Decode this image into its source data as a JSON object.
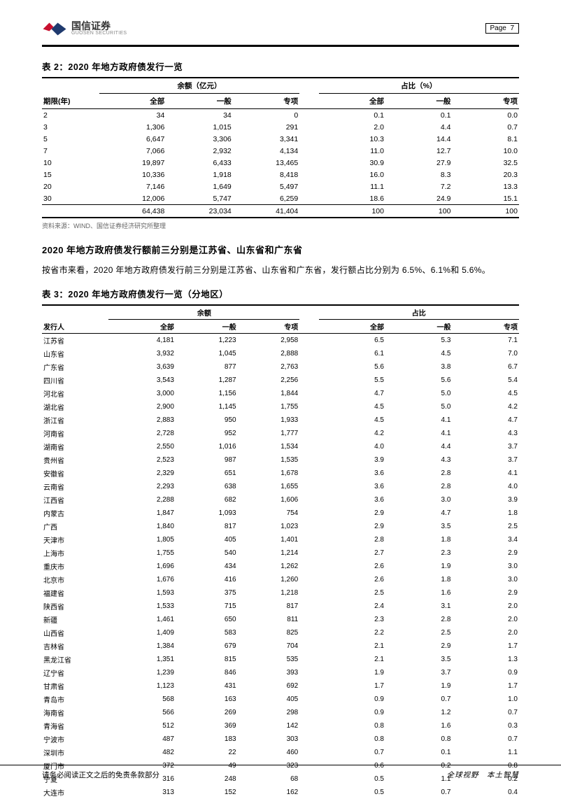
{
  "header": {
    "company_cn": "国信证券",
    "company_en": "GUOSEN SECURITIES",
    "page_label": "Page",
    "page_num": "7",
    "logo_colors": {
      "red": "#c8102e",
      "blue": "#1f3a6e"
    }
  },
  "table2": {
    "title": "表 2：2020 年地方政府债发行一览",
    "group_headers": {
      "amount": "余额（亿元）",
      "ratio": "占比（%）"
    },
    "col_headers": {
      "term": "期限(年)",
      "all": "全部",
      "general": "一般",
      "special": "专项"
    },
    "rows": [
      {
        "term": "2",
        "a_all": "34",
        "a_gen": "34",
        "a_spc": "0",
        "r_all": "0.1",
        "r_gen": "0.1",
        "r_spc": "0.0"
      },
      {
        "term": "3",
        "a_all": "1,306",
        "a_gen": "1,015",
        "a_spc": "291",
        "r_all": "2.0",
        "r_gen": "4.4",
        "r_spc": "0.7"
      },
      {
        "term": "5",
        "a_all": "6,647",
        "a_gen": "3,306",
        "a_spc": "3,341",
        "r_all": "10.3",
        "r_gen": "14.4",
        "r_spc": "8.1"
      },
      {
        "term": "7",
        "a_all": "7,066",
        "a_gen": "2,932",
        "a_spc": "4,134",
        "r_all": "11.0",
        "r_gen": "12.7",
        "r_spc": "10.0"
      },
      {
        "term": "10",
        "a_all": "19,897",
        "a_gen": "6,433",
        "a_spc": "13,465",
        "r_all": "30.9",
        "r_gen": "27.9",
        "r_spc": "32.5"
      },
      {
        "term": "15",
        "a_all": "10,336",
        "a_gen": "1,918",
        "a_spc": "8,418",
        "r_all": "16.0",
        "r_gen": "8.3",
        "r_spc": "20.3"
      },
      {
        "term": "20",
        "a_all": "7,146",
        "a_gen": "1,649",
        "a_spc": "5,497",
        "r_all": "11.1",
        "r_gen": "7.2",
        "r_spc": "13.3"
      },
      {
        "term": "30",
        "a_all": "12,006",
        "a_gen": "5,747",
        "a_spc": "6,259",
        "r_all": "18.6",
        "r_gen": "24.9",
        "r_spc": "15.1"
      }
    ],
    "sum": {
      "term": "",
      "a_all": "64,438",
      "a_gen": "23,034",
      "a_spc": "41,404",
      "r_all": "100",
      "r_gen": "100",
      "r_spc": "100"
    },
    "source": "资料来源：WIND、国信证券经济研究所整理"
  },
  "section": {
    "heading": "2020 年地方政府债发行额前三分别是江苏省、山东省和广东省",
    "paragraph": "按省市来看，2020 年地方政府债发行前三分别是江苏省、山东省和广东省，发行额占比分别为 6.5%、6.1%和 5.6%。"
  },
  "table3": {
    "title": "表 3：2020 年地方政府债发行一览（分地区）",
    "group_headers": {
      "amount": "余额",
      "ratio": "占比"
    },
    "col_headers": {
      "issuer": "发行人",
      "all": "全部",
      "general": "一般",
      "special": "专项"
    },
    "rows": [
      {
        "n": "江苏省",
        "a": "4,181",
        "g": "1,223",
        "s": "2,958",
        "ra": "6.5",
        "rg": "5.3",
        "rs": "7.1"
      },
      {
        "n": "山东省",
        "a": "3,932",
        "g": "1,045",
        "s": "2,888",
        "ra": "6.1",
        "rg": "4.5",
        "rs": "7.0"
      },
      {
        "n": "广东省",
        "a": "3,639",
        "g": "877",
        "s": "2,763",
        "ra": "5.6",
        "rg": "3.8",
        "rs": "6.7"
      },
      {
        "n": "四川省",
        "a": "3,543",
        "g": "1,287",
        "s": "2,256",
        "ra": "5.5",
        "rg": "5.6",
        "rs": "5.4"
      },
      {
        "n": "河北省",
        "a": "3,000",
        "g": "1,156",
        "s": "1,844",
        "ra": "4.7",
        "rg": "5.0",
        "rs": "4.5"
      },
      {
        "n": "湖北省",
        "a": "2,900",
        "g": "1,145",
        "s": "1,755",
        "ra": "4.5",
        "rg": "5.0",
        "rs": "4.2"
      },
      {
        "n": "浙江省",
        "a": "2,883",
        "g": "950",
        "s": "1,933",
        "ra": "4.5",
        "rg": "4.1",
        "rs": "4.7"
      },
      {
        "n": "河南省",
        "a": "2,728",
        "g": "952",
        "s": "1,777",
        "ra": "4.2",
        "rg": "4.1",
        "rs": "4.3"
      },
      {
        "n": "湖南省",
        "a": "2,550",
        "g": "1,016",
        "s": "1,534",
        "ra": "4.0",
        "rg": "4.4",
        "rs": "3.7"
      },
      {
        "n": "贵州省",
        "a": "2,523",
        "g": "987",
        "s": "1,535",
        "ra": "3.9",
        "rg": "4.3",
        "rs": "3.7"
      },
      {
        "n": "安徽省",
        "a": "2,329",
        "g": "651",
        "s": "1,678",
        "ra": "3.6",
        "rg": "2.8",
        "rs": "4.1"
      },
      {
        "n": "云南省",
        "a": "2,293",
        "g": "638",
        "s": "1,655",
        "ra": "3.6",
        "rg": "2.8",
        "rs": "4.0"
      },
      {
        "n": "江西省",
        "a": "2,288",
        "g": "682",
        "s": "1,606",
        "ra": "3.6",
        "rg": "3.0",
        "rs": "3.9"
      },
      {
        "n": "内蒙古",
        "a": "1,847",
        "g": "1,093",
        "s": "754",
        "ra": "2.9",
        "rg": "4.7",
        "rs": "1.8"
      },
      {
        "n": "广西",
        "a": "1,840",
        "g": "817",
        "s": "1,023",
        "ra": "2.9",
        "rg": "3.5",
        "rs": "2.5"
      },
      {
        "n": "天津市",
        "a": "1,805",
        "g": "405",
        "s": "1,401",
        "ra": "2.8",
        "rg": "1.8",
        "rs": "3.4"
      },
      {
        "n": "上海市",
        "a": "1,755",
        "g": "540",
        "s": "1,214",
        "ra": "2.7",
        "rg": "2.3",
        "rs": "2.9"
      },
      {
        "n": "重庆市",
        "a": "1,696",
        "g": "434",
        "s": "1,262",
        "ra": "2.6",
        "rg": "1.9",
        "rs": "3.0"
      },
      {
        "n": "北京市",
        "a": "1,676",
        "g": "416",
        "s": "1,260",
        "ra": "2.6",
        "rg": "1.8",
        "rs": "3.0"
      },
      {
        "n": "福建省",
        "a": "1,593",
        "g": "375",
        "s": "1,218",
        "ra": "2.5",
        "rg": "1.6",
        "rs": "2.9"
      },
      {
        "n": "陕西省",
        "a": "1,533",
        "g": "715",
        "s": "817",
        "ra": "2.4",
        "rg": "3.1",
        "rs": "2.0"
      },
      {
        "n": "新疆",
        "a": "1,461",
        "g": "650",
        "s": "811",
        "ra": "2.3",
        "rg": "2.8",
        "rs": "2.0"
      },
      {
        "n": "山西省",
        "a": "1,409",
        "g": "583",
        "s": "825",
        "ra": "2.2",
        "rg": "2.5",
        "rs": "2.0"
      },
      {
        "n": "吉林省",
        "a": "1,384",
        "g": "679",
        "s": "704",
        "ra": "2.1",
        "rg": "2.9",
        "rs": "1.7"
      },
      {
        "n": "黑龙江省",
        "a": "1,351",
        "g": "815",
        "s": "535",
        "ra": "2.1",
        "rg": "3.5",
        "rs": "1.3"
      },
      {
        "n": "辽宁省",
        "a": "1,239",
        "g": "846",
        "s": "393",
        "ra": "1.9",
        "rg": "3.7",
        "rs": "0.9"
      },
      {
        "n": "甘肃省",
        "a": "1,123",
        "g": "431",
        "s": "692",
        "ra": "1.7",
        "rg": "1.9",
        "rs": "1.7"
      },
      {
        "n": "青岛市",
        "a": "568",
        "g": "163",
        "s": "405",
        "ra": "0.9",
        "rg": "0.7",
        "rs": "1.0"
      },
      {
        "n": "海南省",
        "a": "566",
        "g": "269",
        "s": "298",
        "ra": "0.9",
        "rg": "1.2",
        "rs": "0.7"
      },
      {
        "n": "青海省",
        "a": "512",
        "g": "369",
        "s": "142",
        "ra": "0.8",
        "rg": "1.6",
        "rs": "0.3"
      },
      {
        "n": "宁波市",
        "a": "487",
        "g": "183",
        "s": "303",
        "ra": "0.8",
        "rg": "0.8",
        "rs": "0.7"
      },
      {
        "n": "深圳市",
        "a": "482",
        "g": "22",
        "s": "460",
        "ra": "0.7",
        "rg": "0.1",
        "rs": "1.1"
      },
      {
        "n": "厦门市",
        "a": "372",
        "g": "49",
        "s": "323",
        "ra": "0.6",
        "rg": "0.2",
        "rs": "0.8"
      },
      {
        "n": "宁夏",
        "a": "316",
        "g": "248",
        "s": "68",
        "ra": "0.5",
        "rg": "1.1",
        "rs": "0.2"
      },
      {
        "n": "大连市",
        "a": "313",
        "g": "152",
        "s": "162",
        "ra": "0.5",
        "rg": "0.7",
        "rs": "0.4"
      }
    ]
  },
  "footer": {
    "left": "请务必阅读正文之后的免责条款部分",
    "right": "全球视野　本土智慧"
  }
}
